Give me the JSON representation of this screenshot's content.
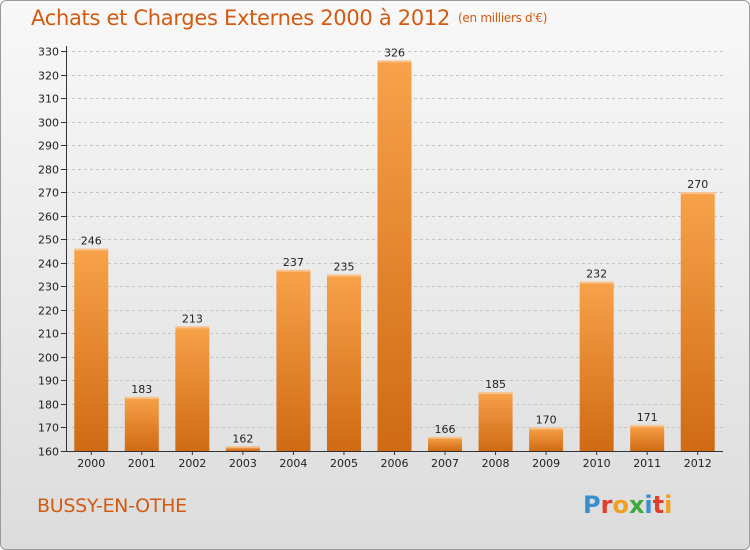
{
  "header": {
    "title": "Achats et Charges Externes 2000 à 2012",
    "subtitle": "(en milliers d'€)"
  },
  "footer": {
    "city": "BUSSY-EN-OTHE",
    "logo_letters": [
      "P",
      "r",
      "o",
      "x",
      "i",
      "t",
      "i"
    ],
    "logo_colors": [
      "#3a8fd0",
      "#e0402a",
      "#f0a020",
      "#3cab3c",
      "#3a8fd0",
      "#e0402a",
      "#f0a020"
    ]
  },
  "chart_data": {
    "type": "bar",
    "title": "Achats et Charges Externes 2000 à 2012",
    "subtitle": "(en milliers d'€)",
    "categories": [
      "2000",
      "2001",
      "2002",
      "2003",
      "2004",
      "2005",
      "2006",
      "2007",
      "2008",
      "2009",
      "2010",
      "2011",
      "2012"
    ],
    "values": [
      246,
      183,
      213,
      162,
      237,
      235,
      326,
      166,
      185,
      170,
      232,
      171,
      270
    ],
    "ylim": [
      160,
      330
    ],
    "yticks": [
      160,
      170,
      180,
      190,
      200,
      210,
      220,
      230,
      240,
      250,
      260,
      270,
      280,
      290,
      300,
      310,
      320,
      330
    ],
    "grid": true,
    "bar_color": "#f0922e",
    "bar_color_dark": "#d06a14"
  }
}
